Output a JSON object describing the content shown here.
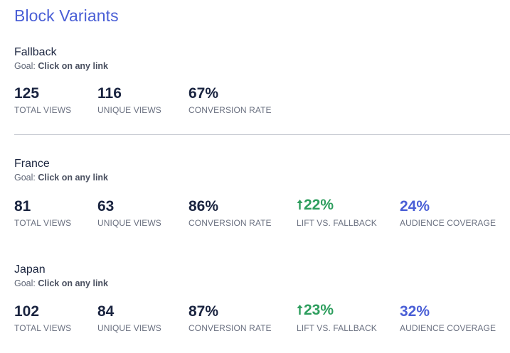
{
  "page": {
    "title": "Block Variants"
  },
  "colors": {
    "title": "#4a5fd6",
    "lift": "#2e9e5e",
    "coverage": "#4a5fd6",
    "divider": "#c9ccd3"
  },
  "variants": [
    {
      "name": "Fallback",
      "goal_label": "Goal:",
      "goal_value": "Click on any link",
      "metrics": {
        "total_views": {
          "value": "125",
          "label": "TOTAL VIEWS"
        },
        "unique_views": {
          "value": "116",
          "label": "UNIQUE VIEWS"
        },
        "conversion_rate": {
          "value": "67%",
          "label": "CONVERSION RATE"
        }
      }
    },
    {
      "name": "France",
      "goal_label": "Goal:",
      "goal_value": "Click on any link",
      "metrics": {
        "total_views": {
          "value": "81",
          "label": "TOTAL VIEWS"
        },
        "unique_views": {
          "value": "63",
          "label": "UNIQUE VIEWS"
        },
        "conversion_rate": {
          "value": "86%",
          "label": "CONVERSION RATE"
        },
        "lift": {
          "value": "22%",
          "label": "LIFT VS. FALLBACK",
          "icon": "arrow-up-icon"
        },
        "audience_coverage": {
          "value": "24%",
          "label": "AUDIENCE COVERAGE"
        }
      }
    },
    {
      "name": "Japan",
      "goal_label": "Goal:",
      "goal_value": "Click on any link",
      "metrics": {
        "total_views": {
          "value": "102",
          "label": "TOTAL VIEWS"
        },
        "unique_views": {
          "value": "84",
          "label": "UNIQUE VIEWS"
        },
        "conversion_rate": {
          "value": "87%",
          "label": "CONVERSION RATE"
        },
        "lift": {
          "value": "23%",
          "label": "LIFT VS. FALLBACK",
          "icon": "arrow-up-icon"
        },
        "audience_coverage": {
          "value": "32%",
          "label": "AUDIENCE COVERAGE"
        }
      }
    }
  ]
}
